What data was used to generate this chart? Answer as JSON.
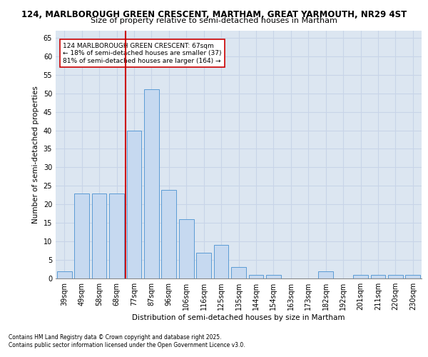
{
  "title_line1": "124, MARLBOROUGH GREEN CRESCENT, MARTHAM, GREAT YARMOUTH, NR29 4ST",
  "title_line2": "Size of property relative to semi-detached houses in Martham",
  "xlabel": "Distribution of semi-detached houses by size in Martham",
  "ylabel": "Number of semi-detached properties",
  "categories": [
    "39sqm",
    "49sqm",
    "58sqm",
    "68sqm",
    "77sqm",
    "87sqm",
    "96sqm",
    "106sqm",
    "116sqm",
    "125sqm",
    "135sqm",
    "144sqm",
    "154sqm",
    "163sqm",
    "173sqm",
    "182sqm",
    "192sqm",
    "201sqm",
    "211sqm",
    "220sqm",
    "230sqm"
  ],
  "values": [
    2,
    23,
    23,
    23,
    40,
    51,
    24,
    16,
    7,
    9,
    3,
    1,
    1,
    0,
    0,
    2,
    0,
    1,
    1,
    1,
    1
  ],
  "bar_color": "#c6d9f0",
  "bar_edge_color": "#5b9bd5",
  "red_line_color": "#cc0000",
  "annotation_text": "124 MARLBOROUGH GREEN CRESCENT: 67sqm\n← 18% of semi-detached houses are smaller (37)\n81% of semi-detached houses are larger (164) →",
  "annotation_box_color": "white",
  "annotation_box_edge": "#cc0000",
  "ylim_max": 67,
  "yticks": [
    0,
    5,
    10,
    15,
    20,
    25,
    30,
    35,
    40,
    45,
    50,
    55,
    60,
    65
  ],
  "red_line_x": 3.5,
  "footer_line1": "Contains HM Land Registry data © Crown copyright and database right 2025.",
  "footer_line2": "Contains public sector information licensed under the Open Government Licence v3.0.",
  "grid_color": "#c8d4e8",
  "background_color": "#dce6f1",
  "title1_fontsize": 8.5,
  "title2_fontsize": 8.0,
  "axis_fontsize": 7.5,
  "tick_fontsize": 7.0,
  "annot_fontsize": 6.5,
  "footer_fontsize": 5.5
}
